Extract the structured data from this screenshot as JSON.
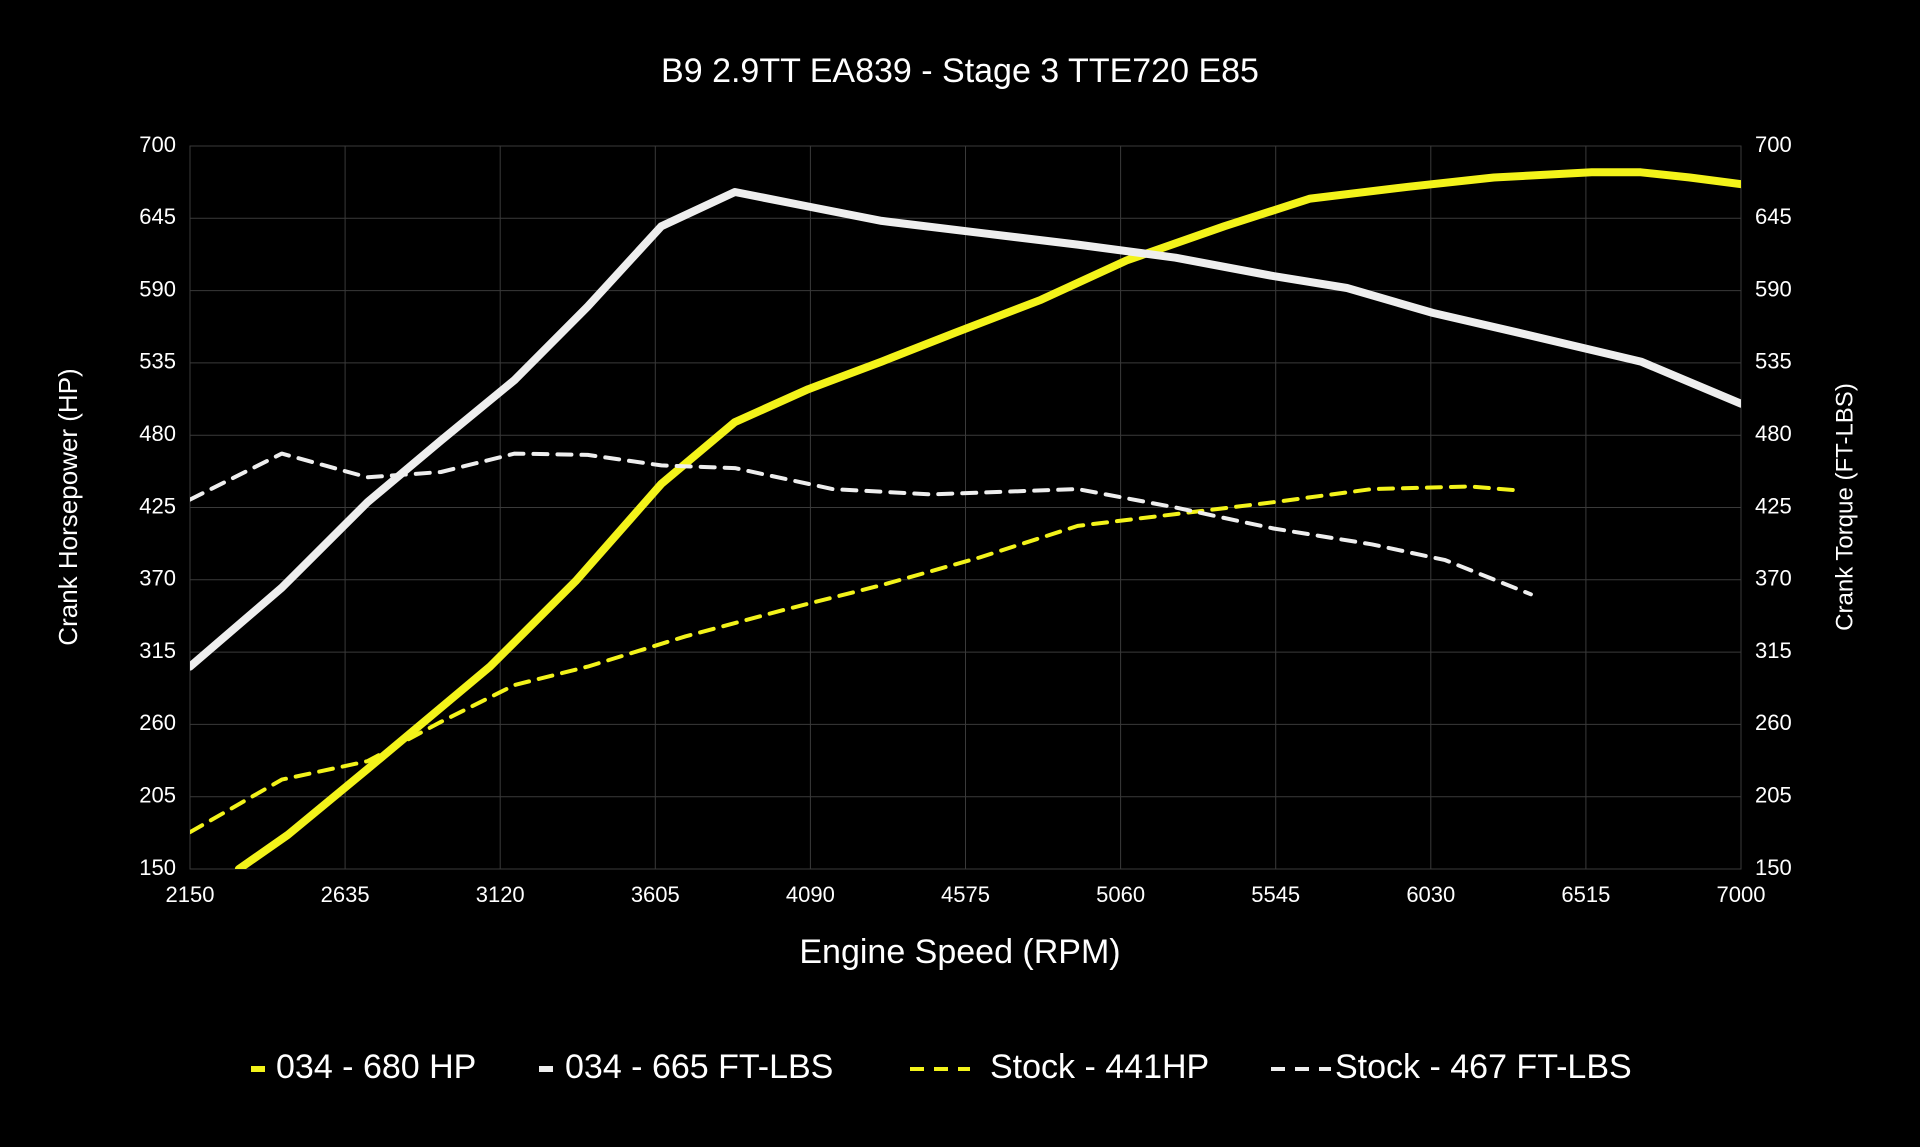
{
  "chart_data": {
    "type": "line",
    "title": "B9 2.9TT EA839 - Stage 3 TTE720 E85",
    "x_label": "Engine Speed (RPM)",
    "y_label": "Crank Horsepower (HP)",
    "y2_label": "Crank Torque (FT-LBS)",
    "xlim": [
      2150,
      7000
    ],
    "xticks": [
      2150,
      2635,
      3120,
      3605,
      4090,
      4575,
      5060,
      5545,
      6030,
      6515,
      7000
    ],
    "ylim": [
      150,
      700
    ],
    "yticks": [
      150,
      205,
      260,
      315,
      370,
      425,
      480,
      535,
      590,
      645,
      700
    ],
    "y2lim": [
      150,
      700
    ],
    "y2ticks": [
      150,
      205,
      260,
      315,
      370,
      425,
      480,
      535,
      590,
      645,
      700
    ],
    "grid": true,
    "legend": "bottom",
    "series": [
      {
        "name": "034 - 680 HP",
        "color": "#f3f31a",
        "dashed": false,
        "x": [
          2303,
          2456,
          2705,
          3088,
          3356,
          3624,
          3854,
          4083,
          4313,
          4543,
          4811,
          5079,
          5385,
          5653,
          5959,
          6227,
          6533,
          6687,
          6840,
          7000
        ],
        "values": [
          150,
          176,
          226,
          304,
          369,
          443,
          490,
          515,
          536,
          558,
          583,
          613,
          639,
          660,
          669,
          676,
          680,
          680,
          676,
          671
        ]
      },
      {
        "name": "034 - 665 FT-LBS",
        "color": "#eeeeee",
        "dashed": false,
        "axis": "y2",
        "x": [
          2150,
          2437,
          2705,
          2935,
          3165,
          3394,
          3624,
          3854,
          4083,
          4313,
          4619,
          4926,
          5232,
          5538,
          5768,
          6036,
          6304,
          6687,
          7000
        ],
        "values": [
          304,
          364,
          429,
          476,
          522,
          578,
          639,
          665,
          654,
          643,
          634,
          625,
          615,
          601,
          592,
          573,
          558,
          536,
          504
        ]
      },
      {
        "name": "Stock - 441HP",
        "color": "#f3f31a",
        "dashed": true,
        "x": [
          2150,
          2437,
          2705,
          2935,
          3165,
          3394,
          3700,
          4006,
          4313,
          4619,
          4926,
          5232,
          5538,
          5845,
          6151,
          6304
        ],
        "values": [
          178,
          218,
          232,
          262,
          290,
          304,
          327,
          347,
          366,
          387,
          411,
          420,
          429,
          439,
          441,
          438
        ]
      },
      {
        "name": "Stock - 467 FT-LBS",
        "color": "#eeeeee",
        "dashed": true,
        "axis": "y2",
        "x": [
          2150,
          2437,
          2705,
          2935,
          3165,
          3394,
          3624,
          3854,
          4160,
          4466,
          4926,
          5232,
          5538,
          5845,
          6075,
          6343
        ],
        "values": [
          431,
          466,
          448,
          452,
          466,
          465,
          457,
          455,
          439,
          435,
          439,
          425,
          409,
          397,
          385,
          359
        ]
      }
    ]
  }
}
